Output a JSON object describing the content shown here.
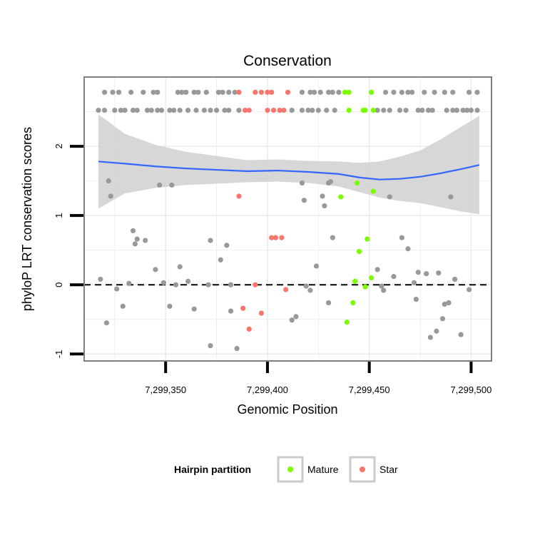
{
  "chart_data": {
    "type": "scatter",
    "title": "Conservation",
    "xlabel": "Genomic Position",
    "ylabel": "phyloP LRT conservation scores",
    "xlim": [
      7299310,
      7299510
    ],
    "ylim": [
      -1.1,
      3.0
    ],
    "x_ticks": [
      7299350,
      7299400,
      7299450,
      7299500
    ],
    "x_tick_labels": [
      "7,299,350",
      "7,299,400",
      "7,299,450",
      "7,299,500"
    ],
    "y_ticks": [
      -1,
      0,
      1,
      2
    ],
    "y_tick_labels": [
      "-1",
      "0",
      "1",
      "2"
    ],
    "reference_line": {
      "y": 0,
      "style": "dashed"
    },
    "colors": {
      "other": "#999999",
      "Mature": "#7CFC00",
      "Star": "#F8766D",
      "smooth": "#3366FF",
      "band": "#D3D3D3",
      "border": "#7F7F7F",
      "grid": "#EBEBEB"
    },
    "legend": {
      "title": "Hairpin partition",
      "position": "bottom",
      "entries": [
        {
          "label": "Mature",
          "color": "#7CFC00"
        },
        {
          "label": "Star",
          "color": "#F8766D"
        }
      ]
    },
    "series": [
      {
        "name": "Other",
        "color": "#999999",
        "points": [
          [
            7299320,
            2.78
          ],
          [
            7299324,
            2.78
          ],
          [
            7299327,
            2.78
          ],
          [
            7299333,
            2.78
          ],
          [
            7299339,
            2.78
          ],
          [
            7299344,
            2.78
          ],
          [
            7299346,
            2.78
          ],
          [
            7299356,
            2.78
          ],
          [
            7299358,
            2.78
          ],
          [
            7299360,
            2.78
          ],
          [
            7299364,
            2.78
          ],
          [
            7299366,
            2.78
          ],
          [
            7299370,
            2.78
          ],
          [
            7299376,
            2.78
          ],
          [
            7299378,
            2.78
          ],
          [
            7299381,
            2.78
          ],
          [
            7299384,
            2.78
          ],
          [
            7299417,
            2.78
          ],
          [
            7299421,
            2.78
          ],
          [
            7299423,
            2.78
          ],
          [
            7299426,
            2.78
          ],
          [
            7299430,
            2.78
          ],
          [
            7299432,
            2.78
          ],
          [
            7299435,
            2.78
          ],
          [
            7299458,
            2.78
          ],
          [
            7299462,
            2.78
          ],
          [
            7299466,
            2.78
          ],
          [
            7299469,
            2.78
          ],
          [
            7299471,
            2.78
          ],
          [
            7299477,
            2.78
          ],
          [
            7299482,
            2.78
          ],
          [
            7299487,
            2.78
          ],
          [
            7299491,
            2.78
          ],
          [
            7299499,
            2.78
          ],
          [
            7299503,
            2.78
          ],
          [
            7299317,
            2.52
          ],
          [
            7299320,
            2.52
          ],
          [
            7299325,
            2.52
          ],
          [
            7299328,
            2.52
          ],
          [
            7299330,
            2.52
          ],
          [
            7299334,
            2.52
          ],
          [
            7299336,
            2.52
          ],
          [
            7299341,
            2.52
          ],
          [
            7299343,
            2.52
          ],
          [
            7299346,
            2.52
          ],
          [
            7299348,
            2.52
          ],
          [
            7299352,
            2.52
          ],
          [
            7299354,
            2.52
          ],
          [
            7299357,
            2.52
          ],
          [
            7299361,
            2.52
          ],
          [
            7299365,
            2.52
          ],
          [
            7299369,
            2.52
          ],
          [
            7299372,
            2.52
          ],
          [
            7299375,
            2.52
          ],
          [
            7299379,
            2.52
          ],
          [
            7299381,
            2.52
          ],
          [
            7299386,
            2.52
          ],
          [
            7299412,
            2.52
          ],
          [
            7299417,
            2.52
          ],
          [
            7299420,
            2.52
          ],
          [
            7299422,
            2.52
          ],
          [
            7299425,
            2.52
          ],
          [
            7299429,
            2.52
          ],
          [
            7299433,
            2.52
          ],
          [
            7299454,
            2.52
          ],
          [
            7299457,
            2.52
          ],
          [
            7299460,
            2.52
          ],
          [
            7299465,
            2.52
          ],
          [
            7299468,
            2.52
          ],
          [
            7299474,
            2.52
          ],
          [
            7299476,
            2.52
          ],
          [
            7299479,
            2.52
          ],
          [
            7299481,
            2.52
          ],
          [
            7299488,
            2.52
          ],
          [
            7299491,
            2.52
          ],
          [
            7299493,
            2.52
          ],
          [
            7299496,
            2.52
          ],
          [
            7299498,
            2.52
          ],
          [
            7299500,
            2.52
          ],
          [
            7299503,
            2.52
          ],
          [
            7299322,
            1.5
          ],
          [
            7299323,
            1.28
          ],
          [
            7299347,
            1.44
          ],
          [
            7299353,
            1.44
          ],
          [
            7299417,
            1.47
          ],
          [
            7299418,
            1.22
          ],
          [
            7299427,
            1.28
          ],
          [
            7299428,
            1.14
          ],
          [
            7299430,
            1.47
          ],
          [
            7299431,
            1.49
          ],
          [
            7299460,
            1.27
          ],
          [
            7299490,
            1.27
          ],
          [
            7299334,
            0.78
          ],
          [
            7299335,
            0.59
          ],
          [
            7299336,
            0.66
          ],
          [
            7299340,
            0.64
          ],
          [
            7299372,
            0.64
          ],
          [
            7299380,
            0.57
          ],
          [
            7299377,
            0.36
          ],
          [
            7299432,
            0.68
          ],
          [
            7299466,
            0.68
          ],
          [
            7299469,
            0.52
          ],
          [
            7299318,
            0.08
          ],
          [
            7299326,
            -0.06
          ],
          [
            7299329,
            -0.31
          ],
          [
            7299321,
            -0.55
          ],
          [
            7299332,
            0.02
          ],
          [
            7299345,
            0.22
          ],
          [
            7299349,
            0.03
          ],
          [
            7299352,
            -0.31
          ],
          [
            7299355,
            0.0
          ],
          [
            7299357,
            0.26
          ],
          [
            7299361,
            0.05
          ],
          [
            7299364,
            -0.35
          ],
          [
            7299371,
            0.0
          ],
          [
            7299372,
            -0.88
          ],
          [
            7299382,
            0.0
          ],
          [
            7299382,
            -0.38
          ],
          [
            7299385,
            -0.92
          ],
          [
            7299412,
            -0.51
          ],
          [
            7299414,
            -0.46
          ],
          [
            7299419,
            -0.02
          ],
          [
            7299421,
            -0.08
          ],
          [
            7299424,
            0.27
          ],
          [
            7299430,
            -0.26
          ],
          [
            7299454,
            0.22
          ],
          [
            7299456,
            -0.02
          ],
          [
            7299457,
            -0.08
          ],
          [
            7299462,
            0.12
          ],
          [
            7299472,
            0.03
          ],
          [
            7299473,
            -0.21
          ],
          [
            7299474,
            0.18
          ],
          [
            7299478,
            0.16
          ],
          [
            7299480,
            -0.76
          ],
          [
            7299483,
            -0.67
          ],
          [
            7299484,
            0.17
          ],
          [
            7299486,
            -0.49
          ],
          [
            7299487,
            -0.28
          ],
          [
            7299489,
            -0.26
          ],
          [
            7299492,
            0.08
          ],
          [
            7299495,
            -0.72
          ],
          [
            7299499,
            -0.07
          ]
        ]
      },
      {
        "name": "Mature",
        "color": "#7CFC00",
        "points": [
          [
            7299438,
            2.78
          ],
          [
            7299440,
            2.78
          ],
          [
            7299451,
            2.78
          ],
          [
            7299440,
            2.52
          ],
          [
            7299447,
            2.52
          ],
          [
            7299448,
            2.52
          ],
          [
            7299452,
            2.52
          ],
          [
            7299444,
            1.47
          ],
          [
            7299436,
            1.27
          ],
          [
            7299452,
            1.35
          ],
          [
            7299449,
            0.66
          ],
          [
            7299445,
            0.48
          ],
          [
            7299443,
            0.05
          ],
          [
            7299448,
            -0.03
          ],
          [
            7299451,
            0.1
          ],
          [
            7299442,
            -0.26
          ],
          [
            7299439,
            -0.54
          ]
        ]
      },
      {
        "name": "Star",
        "color": "#F8766D",
        "points": [
          [
            7299386,
            2.78
          ],
          [
            7299394,
            2.78
          ],
          [
            7299397,
            2.78
          ],
          [
            7299400,
            2.78
          ],
          [
            7299402,
            2.78
          ],
          [
            7299410,
            2.78
          ],
          [
            7299389,
            2.52
          ],
          [
            7299391,
            2.52
          ],
          [
            7299400,
            2.52
          ],
          [
            7299403,
            2.52
          ],
          [
            7299406,
            2.52
          ],
          [
            7299408,
            2.52
          ],
          [
            7299386,
            1.28
          ],
          [
            7299402,
            0.68
          ],
          [
            7299404,
            0.68
          ],
          [
            7299407,
            0.68
          ],
          [
            7299394,
            0.0
          ],
          [
            7299409,
            -0.07
          ],
          [
            7299388,
            -0.34
          ],
          [
            7299397,
            -0.41
          ],
          [
            7299391,
            -0.64
          ]
        ]
      }
    ],
    "smooth": {
      "x": [
        7299317,
        7299330,
        7299345,
        7299360,
        7299375,
        7299390,
        7299405,
        7299420,
        7299435,
        7299445,
        7299455,
        7299465,
        7299475,
        7299485,
        7299495,
        7299504
      ],
      "fit": [
        1.78,
        1.75,
        1.71,
        1.68,
        1.66,
        1.64,
        1.65,
        1.63,
        1.6,
        1.55,
        1.52,
        1.53,
        1.56,
        1.61,
        1.67,
        1.73
      ],
      "lower": [
        1.1,
        1.32,
        1.4,
        1.44,
        1.46,
        1.48,
        1.49,
        1.47,
        1.42,
        1.34,
        1.26,
        1.21,
        1.18,
        1.12,
        1.06,
        1.02
      ],
      "upper": [
        2.46,
        2.18,
        2.02,
        1.92,
        1.86,
        1.8,
        1.81,
        1.79,
        1.78,
        1.76,
        1.78,
        1.85,
        1.94,
        2.1,
        2.28,
        2.44
      ]
    }
  }
}
